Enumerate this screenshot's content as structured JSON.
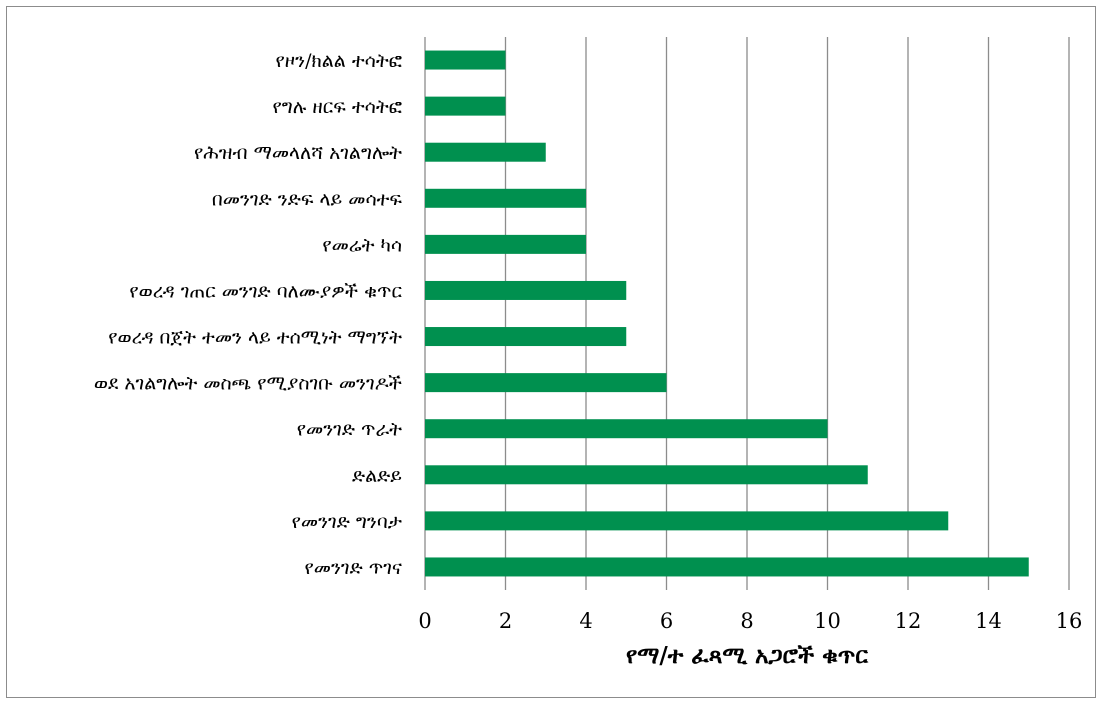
{
  "chart_data": {
    "type": "bar",
    "orientation": "horizontal",
    "categories": [
      "የመንገድ ጥገና",
      "የመንገድ ግንባታ",
      "ድልድይ",
      "የመንገድ ጥራት",
      "ወደ አገልግሎት መስጫ የሚያስገቡ መንገዶች",
      "የወረዳ በጀት ተመን ላይ ተሰሚነት ማግኘት",
      "የወረዳ ገጠር መንገድ ባለሙያዎች ቁጥር",
      "የመሬት ካሳ",
      "በመንገድ ንድፍ ላይ መሳተፍ",
      "የሕዝብ ማመላለሻ አገልግሎት",
      "የግሉ ዘርፍ ተሳትፎ",
      "የዞን/ክልል ተሳትፎ"
    ],
    "values": [
      15,
      13,
      11,
      10,
      6,
      5,
      5,
      4,
      4,
      3,
      2,
      2
    ],
    "xlabel": "የማ/ተ ፈጻሚ አጋሮች ቁጥር",
    "ylabel": "",
    "title": "",
    "xlim": [
      0,
      16
    ],
    "xticks": [
      "0",
      "2",
      "4",
      "6",
      "8",
      "10",
      "12",
      "14",
      "16"
    ],
    "grid": "vertical",
    "legend": "none",
    "bar_color": "#00904f",
    "grid_color": "#8c8c8c"
  }
}
